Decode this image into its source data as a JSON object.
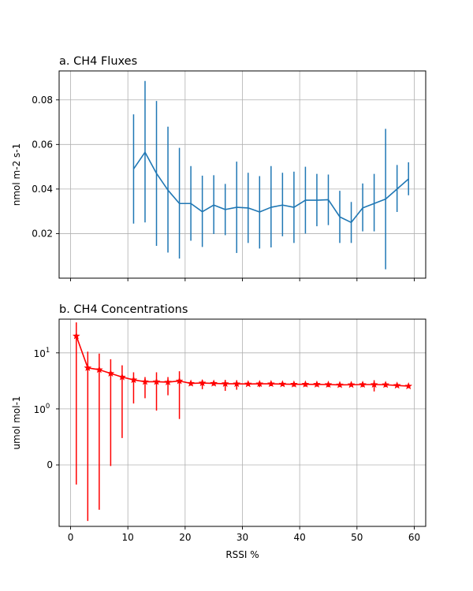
{
  "chart_data": [
    {
      "type": "line",
      "title": "a. CH4 Fluxes",
      "xlabel": "",
      "ylabel": "nmol m-2 s-1",
      "grid": true,
      "xlim": [
        -2,
        62
      ],
      "ylim": [
        0.0,
        0.093
      ],
      "x_ticks": [
        0,
        10,
        20,
        30,
        40,
        50,
        60
      ],
      "show_x_tick_labels": false,
      "y_ticks": [
        0.02,
        0.04,
        0.06,
        0.08
      ],
      "y_tick_labels": [
        "0.02",
        "0.04",
        "0.06",
        "0.08"
      ],
      "color": "#1f77b4",
      "marker": "none",
      "series": [
        {
          "x": [
            11,
            13,
            15,
            17,
            19,
            21,
            23,
            25,
            27,
            29,
            31,
            33,
            35,
            37,
            39,
            41,
            43,
            45,
            47,
            49,
            51,
            53,
            55,
            57,
            59
          ],
          "y": [
            0.049,
            0.0565,
            0.047,
            0.0395,
            0.0335,
            0.0335,
            0.0298,
            0.0328,
            0.0308,
            0.0318,
            0.0315,
            0.0297,
            0.0318,
            0.0328,
            0.0318,
            0.035,
            0.035,
            0.0352,
            0.0275,
            0.025,
            0.0315,
            0.0335,
            0.0355,
            0.04,
            0.0445
          ],
          "yerr_low": [
            0.0245,
            0.025,
            0.0145,
            0.0115,
            0.0088,
            0.0168,
            0.014,
            0.0198,
            0.0193,
            0.0113,
            0.0158,
            0.0133,
            0.0138,
            0.0188,
            0.0158,
            0.02,
            0.0233,
            0.0238,
            0.0158,
            0.0158,
            0.021,
            0.021,
            0.004,
            0.0297,
            0.0372
          ],
          "yerr_high": [
            0.0735,
            0.0885,
            0.0795,
            0.068,
            0.0585,
            0.0503,
            0.046,
            0.0462,
            0.0423,
            0.0523,
            0.0473,
            0.0458,
            0.0503,
            0.0473,
            0.0478,
            0.05,
            0.0468,
            0.0465,
            0.0392,
            0.0342,
            0.0425,
            0.0468,
            0.067,
            0.0508,
            0.052
          ]
        }
      ]
    },
    {
      "type": "line",
      "title": "b. CH4 Concentrations",
      "xlabel": "RSSI %",
      "ylabel": "umol mol-1",
      "grid": true,
      "yscale": "symlog",
      "linthresh": 1,
      "xlim": [
        -2,
        62
      ],
      "ylim": [
        -1.25,
        40
      ],
      "x_ticks": [
        0,
        10,
        20,
        30,
        40,
        50,
        60
      ],
      "x_tick_labels": [
        "0",
        "10",
        "20",
        "30",
        "40",
        "50",
        "60"
      ],
      "y_ticks": [
        0,
        1,
        10
      ],
      "y_tick_labels": [
        "0",
        "10^0",
        "10^1"
      ],
      "color": "#ff0000",
      "marker": "star",
      "series": [
        {
          "x": [
            1,
            3,
            5,
            7,
            9,
            11,
            13,
            15,
            17,
            19,
            21,
            23,
            25,
            27,
            29,
            31,
            33,
            35,
            37,
            39,
            41,
            43,
            45,
            47,
            49,
            51,
            53,
            55,
            57,
            59
          ],
          "y": [
            20,
            5.4,
            5.0,
            4.3,
            3.7,
            3.3,
            3.05,
            3.05,
            3.0,
            3.15,
            2.85,
            2.9,
            2.85,
            2.82,
            2.8,
            2.78,
            2.8,
            2.8,
            2.77,
            2.75,
            2.75,
            2.74,
            2.72,
            2.68,
            2.7,
            2.72,
            2.72,
            2.7,
            2.62,
            2.55
          ],
          "yerr_low": [
            -0.35,
            -1.0,
            -0.8,
            -0.02,
            0.48,
            1.25,
            1.55,
            0.97,
            1.75,
            0.82,
            2.6,
            2.25,
            2.6,
            2.1,
            2.2,
            2.6,
            2.45,
            2.55,
            2.55,
            2.5,
            2.5,
            2.5,
            2.45,
            2.45,
            2.5,
            2.45,
            2.05,
            2.45,
            2.45,
            2.35
          ],
          "yerr_high": [
            35,
            10.5,
            9.7,
            7.7,
            6.0,
            4.5,
            3.7,
            4.5,
            3.7,
            4.7,
            3.1,
            3.3,
            3.05,
            3.3,
            3.25,
            3.0,
            3.05,
            3.05,
            3.0,
            3.0,
            3.0,
            3.0,
            2.95,
            2.9,
            2.95,
            3.0,
            3.25,
            3.0,
            2.8,
            2.75
          ]
        }
      ]
    }
  ]
}
